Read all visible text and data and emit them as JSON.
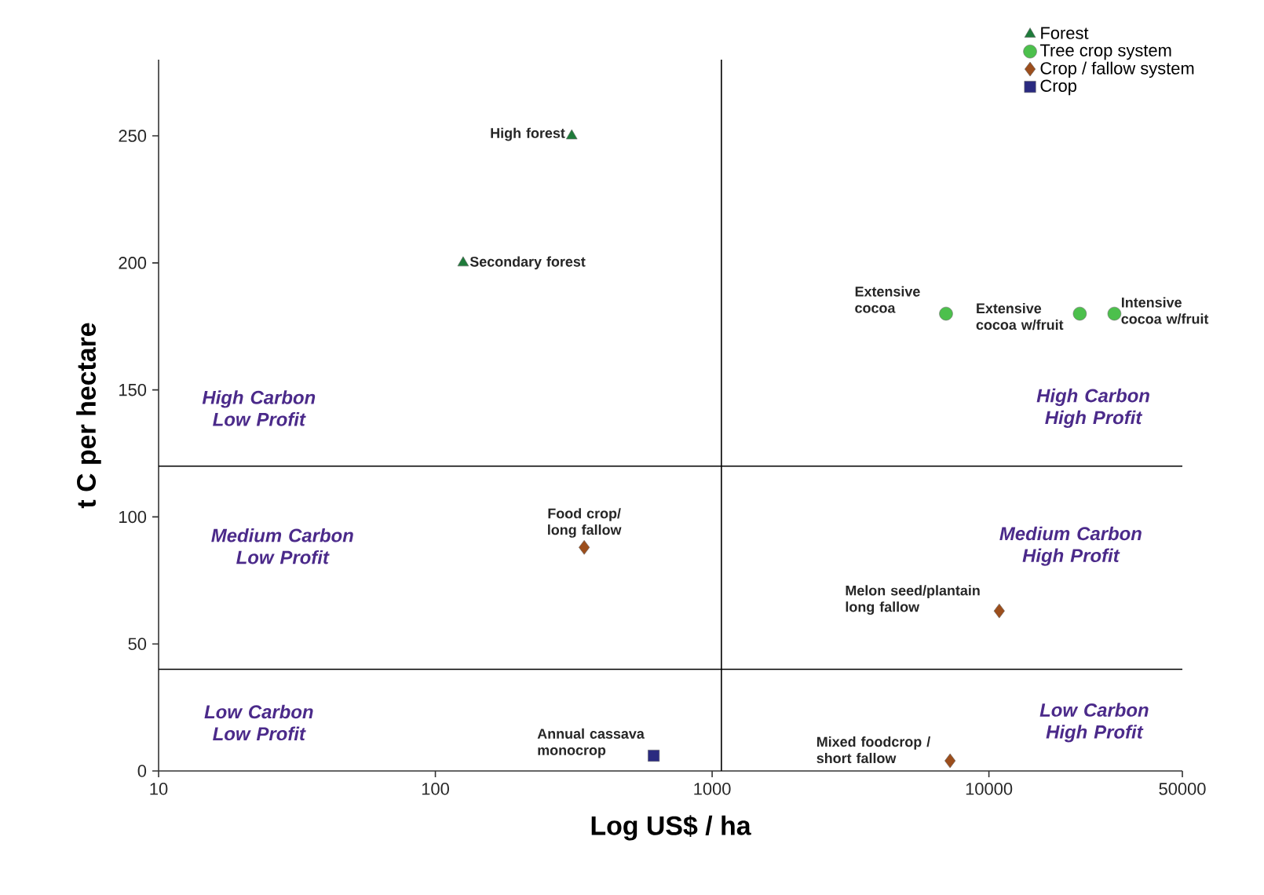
{
  "chart_data": {
    "type": "scatter",
    "xlabel": "Log US$ / ha",
    "ylabel": "t C per hectare",
    "log": "x",
    "xlim": [
      10,
      50000
    ],
    "xticks": [
      10,
      100,
      1000,
      10000,
      50000
    ],
    "ylim": [
      0,
      280
    ],
    "yticks": [
      0,
      50,
      100,
      150,
      200,
      250
    ],
    "grid": false,
    "legend": "top right",
    "series": [
      {
        "name": "Forest",
        "color": "#1e7b3a",
        "marker": "triangle",
        "x": [
          311,
          126
        ],
        "values": [
          250,
          200
        ]
      },
      {
        "name": "Tree crop system",
        "color": "#4cc04c",
        "marker": "circle",
        "x": [
          7000,
          21300,
          28400
        ],
        "values": [
          180,
          180,
          180
        ]
      },
      {
        "name": "Crop / fallow system",
        "color": "#9c4e1c",
        "marker": "diamond",
        "x": [
          345,
          10900,
          7240
        ],
        "values": [
          88,
          63,
          4
        ]
      },
      {
        "name": "Crop",
        "color": "#2a2a80",
        "marker": "square",
        "x": [
          615
        ],
        "values": [
          6
        ]
      }
    ],
    "ref_lines": [
      {
        "axis": "x",
        "value": 1080,
        "color": "#000000"
      },
      {
        "axis": "y",
        "value": 120,
        "color": "#000000"
      },
      {
        "axis": "y",
        "value": 40,
        "color": "#000000"
      }
    ],
    "annotations": [
      {
        "text": "High forest",
        "x": 311,
        "y": 250
      },
      {
        "text": "Secondary forest",
        "x": 126,
        "y": 200
      },
      {
        "text": "Extensive cocoa",
        "x": 7000,
        "y": 180
      },
      {
        "text": "Extensive cocoa w/fruit",
        "x": 21300,
        "y": 180
      },
      {
        "text": "Intensive cocoa w/fruit",
        "x": 28400,
        "y": 180
      },
      {
        "text": "Food crop/ long fallow",
        "x": 345,
        "y": 88
      },
      {
        "text": "Melon seed/plantain long fallow",
        "x": 10900,
        "y": 63
      },
      {
        "text": "Mixed foodcrop / short fallow",
        "x": 7240,
        "y": 4
      },
      {
        "text": "Annual cassava monocrop",
        "x": 615,
        "y": 6
      },
      "High Carbon Low Profit",
      "Medium Carbon Low Profit",
      "Low Carbon Low Profit",
      "High Carbon High Profit",
      "Medium Carbon High Profit",
      "Low Carbon High Profit"
    ]
  }
}
